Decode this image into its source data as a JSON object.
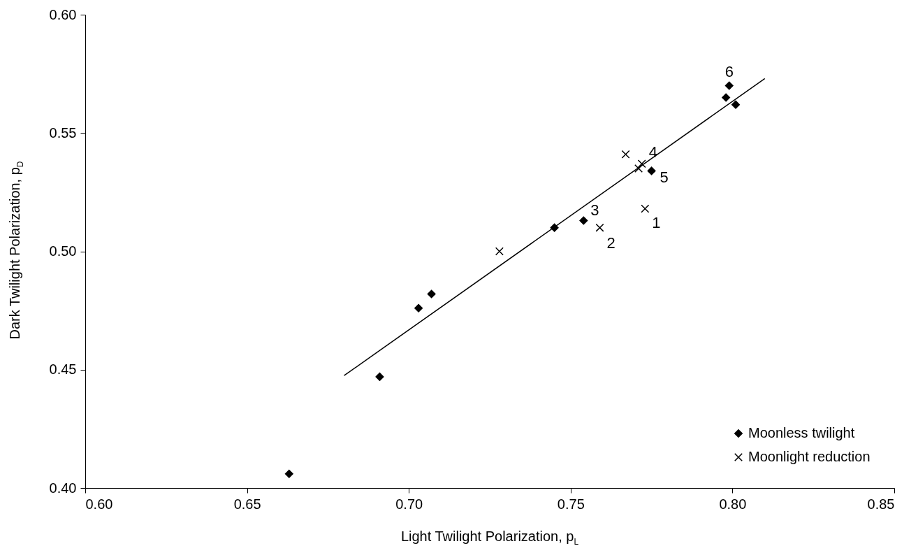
{
  "chart_data": {
    "type": "scatter",
    "xlabel": "Light Twilight Polarization, p$_{L}$",
    "ylabel": "Dark Twilight Polarization, p$_{D}$",
    "xlim": [
      0.6,
      0.85
    ],
    "xticks": [
      {
        "value": 0.6,
        "label": "0.60"
      },
      {
        "value": 0.65,
        "label": "0.65"
      },
      {
        "value": 0.7,
        "label": "0.70"
      },
      {
        "value": 0.75,
        "label": "0.75"
      },
      {
        "value": 0.8,
        "label": "0.80"
      },
      {
        "value": 0.85,
        "label": "0.85"
      }
    ],
    "ylim": [
      0.4,
      0.6
    ],
    "yticks": [
      {
        "value": 0.4,
        "label": "0.40"
      },
      {
        "value": 0.45,
        "label": "0.45"
      },
      {
        "value": 0.5,
        "label": "0.50"
      },
      {
        "value": 0.55,
        "label": "0.55"
      },
      {
        "value": 0.6,
        "label": "0.60"
      }
    ],
    "grid": false,
    "legend": "bottom right",
    "series": [
      {
        "name": "Moonless twilight",
        "marker": "diamond",
        "color": "#000000",
        "x": [
          0.663,
          0.691,
          0.703,
          0.707,
          0.745,
          0.754,
          0.775,
          0.798,
          0.799,
          0.801
        ],
        "values": [
          0.406,
          0.447,
          0.476,
          0.482,
          0.51,
          0.513,
          0.534,
          0.565,
          0.57,
          0.562
        ]
      },
      {
        "name": "Moonlight reduction",
        "marker": "cross",
        "color": "#000000",
        "x": [
          0.728,
          0.759,
          0.767,
          0.771,
          0.772,
          0.773
        ],
        "values": [
          0.5,
          0.51,
          0.541,
          0.535,
          0.537,
          0.518
        ]
      },
      {
        "type": "line",
        "color": "#000000",
        "x": [
          0.68,
          0.81
        ],
        "values": [
          0.4475,
          0.573
        ]
      }
    ],
    "annotations": [
      {
        "text": "1",
        "x": 0.773,
        "y": 0.518
      },
      {
        "text": "2",
        "x": 0.759,
        "y": 0.51
      },
      {
        "text": "3",
        "x": 0.754,
        "y": 0.513
      },
      {
        "text": "4",
        "x": 0.772,
        "y": 0.537
      },
      {
        "text": "5",
        "x": 0.775,
        "y": 0.534
      },
      {
        "text": "6",
        "x": 0.799,
        "y": 0.57
      }
    ]
  }
}
